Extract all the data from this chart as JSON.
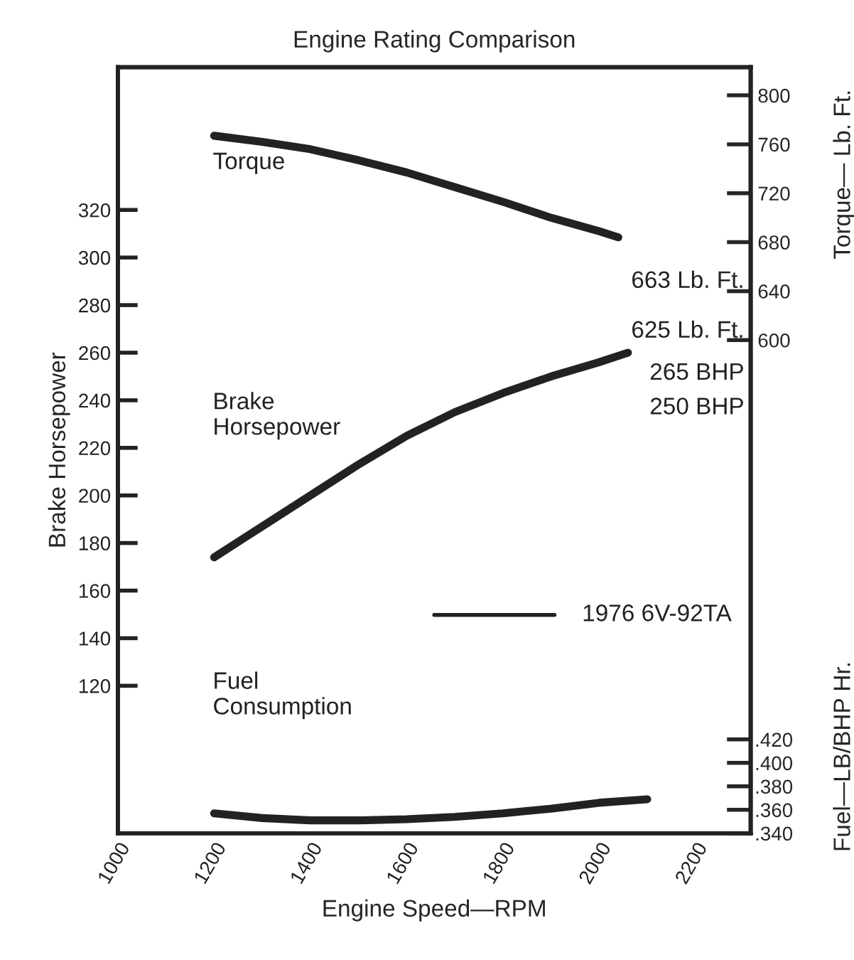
{
  "chart_data": {
    "type": "line",
    "title": "Engine Rating Comparison",
    "xlabel": "Engine Speed—RPM",
    "ylabel": "Brake Horsepower",
    "y2label": "Torque— Lb. Ft.",
    "y3label": "Fuel—LB/BHP Hr.",
    "grid": false,
    "marker": "none",
    "line_style": "solid",
    "xlim": [
      1000,
      2315
    ],
    "xticks": [
      1000,
      1200,
      1400,
      1600,
      1800,
      2000,
      2200
    ],
    "ylim": [
      58,
      380
    ],
    "yticks": [
      120,
      140,
      160,
      180,
      200,
      220,
      240,
      260,
      280,
      300,
      320
    ],
    "y2lim": [
      197,
      823
    ],
    "y2ticks": [
      600,
      640,
      680,
      720,
      760,
      800
    ],
    "y3lim": [
      0.34,
      0.993
    ],
    "y3ticks": [
      {
        "value": 0.34,
        "label": ".340"
      },
      {
        "value": 0.36,
        "label": ".360"
      },
      {
        "value": 0.38,
        "label": ".380"
      },
      {
        "value": 0.4,
        "label": ".400"
      },
      {
        "value": 0.42,
        "label": ".420"
      }
    ],
    "series": [
      {
        "color": "#222222",
        "axis": "y2",
        "x": [
          1200,
          1300,
          1400,
          1500,
          1600,
          1700,
          1800,
          1900,
          2000,
          2040
        ],
        "values": [
          767,
          762,
          756,
          747,
          737,
          725,
          713,
          700,
          689,
          684
        ]
      },
      {
        "color": "#222222",
        "axis": "y",
        "x": [
          1200,
          1300,
          1400,
          1500,
          1600,
          1700,
          1800,
          1900,
          2000,
          2060
        ],
        "values": [
          174,
          187,
          200,
          213,
          225,
          235,
          243,
          250,
          256,
          260
        ]
      },
      {
        "color": "#222222",
        "axis": "y3",
        "x": [
          1200,
          1300,
          1400,
          1500,
          1600,
          1700,
          1800,
          1900,
          2000,
          2100
        ],
        "values": [
          0.357,
          0.353,
          0.351,
          0.351,
          0.352,
          0.354,
          0.357,
          0.361,
          0.366,
          0.369
        ]
      }
    ],
    "annotations": [
      "663 Lb. Ft.",
      "625 Lb. Ft.",
      "265 BHP",
      "250 BHP",
      "Torque",
      "Brake Horsepower",
      "Fuel Consumption",
      "1976 6V-92TA"
    ]
  }
}
